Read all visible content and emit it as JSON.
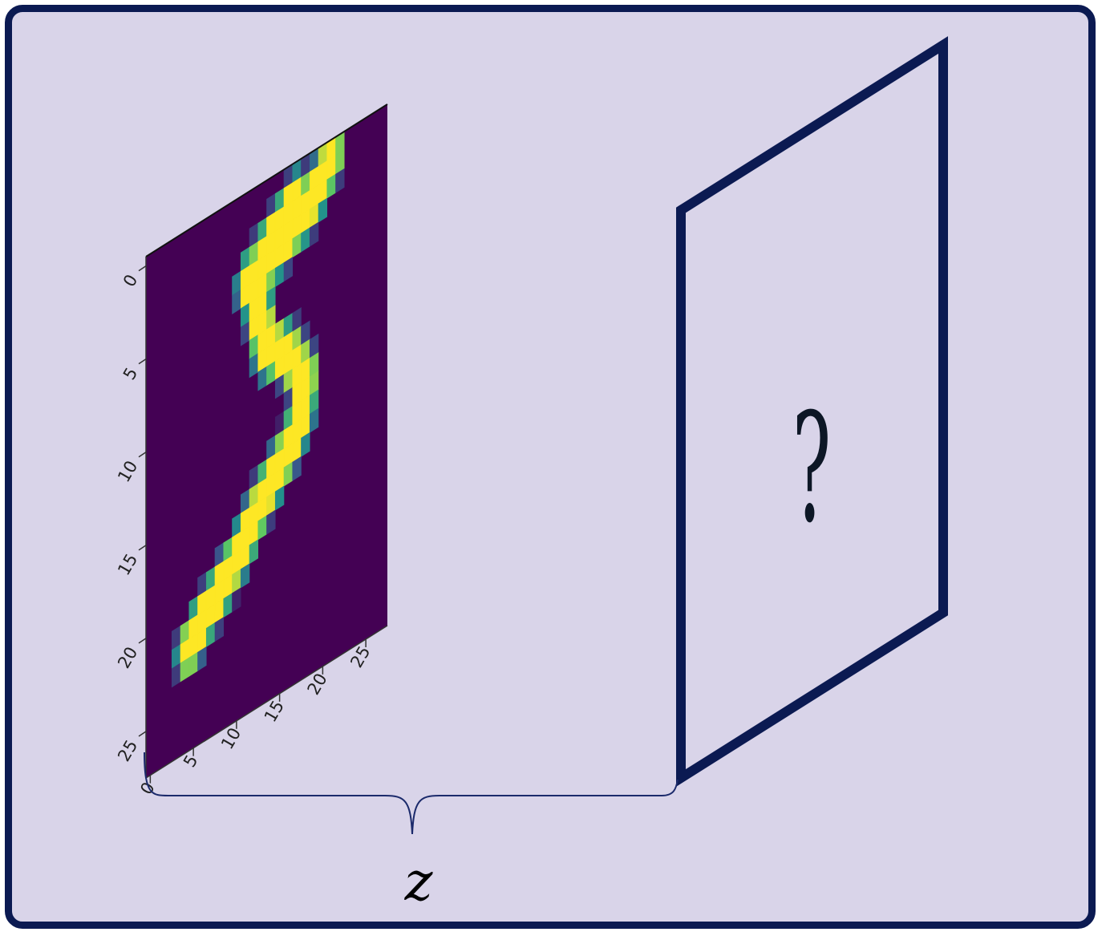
{
  "diagram": {
    "distance_label": "z",
    "unknown_label": "?",
    "colors": {
      "frame_border": "#0b1a52",
      "background": "#d9d4e9",
      "viridis_low": "#440154",
      "viridis_high": "#fde725",
      "bracket": "#1b2a6b"
    }
  },
  "image_plane": {
    "y_ticks": [
      "0",
      "5",
      "10",
      "15",
      "20",
      "25"
    ],
    "x_ticks": [
      "0",
      "5",
      "10",
      "15",
      "20",
      "25"
    ],
    "digit_strokes": [
      {
        "col": [
          21.5,
          20.2,
          18.5,
          16,
          14,
          12
        ],
        "row": [
          1,
          2,
          3,
          3.8,
          4.5,
          4.8
        ]
      },
      {
        "col": [
          17.5,
          15.5,
          13.5
        ],
        "row": [
          2,
          3,
          4
        ]
      },
      {
        "col": [
          12.5,
          13.2,
          14
        ],
        "row": [
          5,
          7,
          9
        ]
      },
      {
        "col": [
          14,
          16.5,
          18.5,
          18,
          16,
          13.5,
          11,
          8.5,
          6.5,
          5
        ],
        "row": [
          9,
          10,
          12,
          14,
          15.5,
          17,
          19,
          20.5,
          21.5,
          22.5
        ]
      }
    ]
  }
}
